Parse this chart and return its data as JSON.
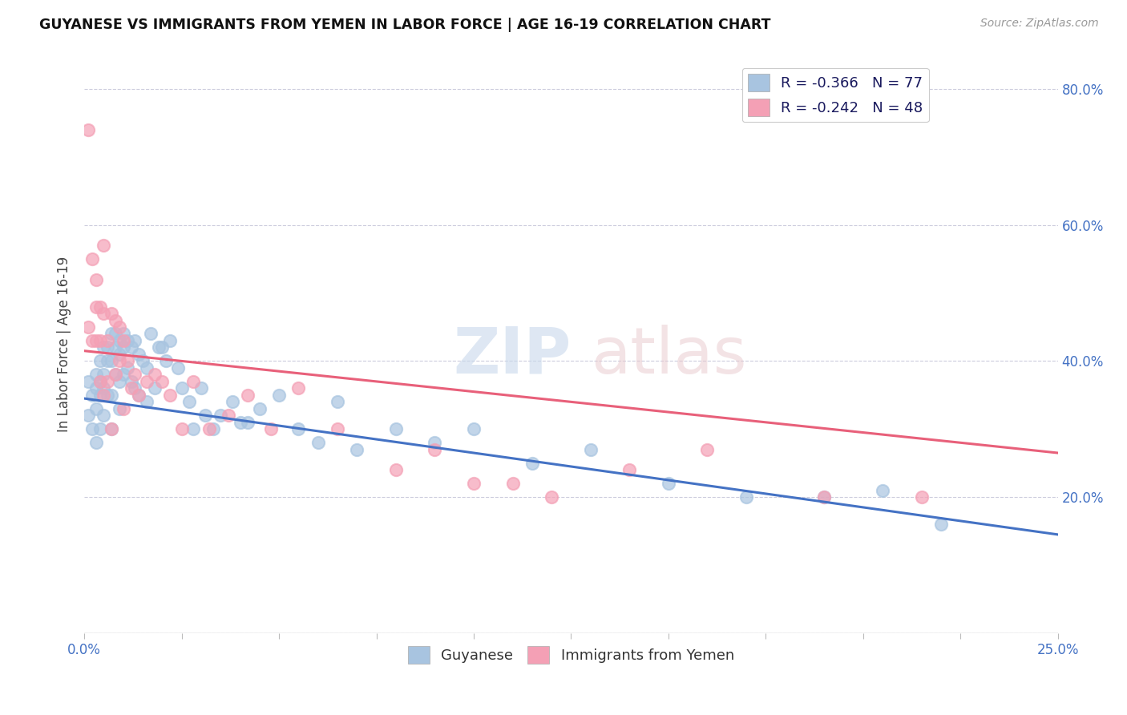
{
  "title": "GUYANESE VS IMMIGRANTS FROM YEMEN IN LABOR FORCE | AGE 16-19 CORRELATION CHART",
  "source": "Source: ZipAtlas.com",
  "ylabel": "In Labor Force | Age 16-19",
  "xlim": [
    0.0,
    0.25
  ],
  "ylim": [
    0.0,
    0.85
  ],
  "xtick_positions": [
    0.0,
    0.025,
    0.05,
    0.075,
    0.1,
    0.125,
    0.15,
    0.175,
    0.2,
    0.225,
    0.25
  ],
  "xtick_labels": [
    "0.0%",
    "",
    "",
    "",
    "",
    "",
    "",
    "",
    "",
    "",
    "25.0%"
  ],
  "ytick_positions": [
    0.0,
    0.2,
    0.4,
    0.6,
    0.8
  ],
  "ytick_labels": [
    "",
    "20.0%",
    "40.0%",
    "60.0%",
    "80.0%"
  ],
  "legend_label1": "R = -0.366   N = 77",
  "legend_label2": "R = -0.242   N = 48",
  "color_blue": "#a8c4e0",
  "color_pink": "#f4a0b5",
  "line_color_blue": "#4472c4",
  "line_color_pink": "#e8607a",
  "blue_trend_x": [
    0.0,
    0.25
  ],
  "blue_trend_y": [
    0.345,
    0.145
  ],
  "pink_trend_x": [
    0.0,
    0.25
  ],
  "pink_trend_y": [
    0.415,
    0.265
  ],
  "legend_bottom_label1": "Guyanese",
  "legend_bottom_label2": "Immigrants from Yemen",
  "blue_scatter_x": [
    0.001,
    0.001,
    0.002,
    0.002,
    0.003,
    0.003,
    0.003,
    0.003,
    0.004,
    0.004,
    0.004,
    0.004,
    0.005,
    0.005,
    0.005,
    0.005,
    0.006,
    0.006,
    0.006,
    0.007,
    0.007,
    0.007,
    0.007,
    0.008,
    0.008,
    0.008,
    0.009,
    0.009,
    0.009,
    0.009,
    0.01,
    0.01,
    0.01,
    0.011,
    0.011,
    0.012,
    0.012,
    0.013,
    0.013,
    0.014,
    0.014,
    0.015,
    0.016,
    0.016,
    0.017,
    0.018,
    0.019,
    0.02,
    0.021,
    0.022,
    0.024,
    0.025,
    0.027,
    0.028,
    0.03,
    0.031,
    0.033,
    0.035,
    0.038,
    0.04,
    0.042,
    0.045,
    0.05,
    0.055,
    0.06,
    0.065,
    0.07,
    0.08,
    0.09,
    0.1,
    0.115,
    0.13,
    0.15,
    0.17,
    0.19,
    0.205,
    0.22
  ],
  "blue_scatter_y": [
    0.37,
    0.32,
    0.35,
    0.3,
    0.38,
    0.36,
    0.33,
    0.28,
    0.4,
    0.37,
    0.35,
    0.3,
    0.42,
    0.38,
    0.36,
    0.32,
    0.42,
    0.4,
    0.35,
    0.44,
    0.4,
    0.35,
    0.3,
    0.44,
    0.42,
    0.38,
    0.43,
    0.41,
    0.37,
    0.33,
    0.44,
    0.42,
    0.38,
    0.43,
    0.39,
    0.42,
    0.37,
    0.43,
    0.36,
    0.41,
    0.35,
    0.4,
    0.39,
    0.34,
    0.44,
    0.36,
    0.42,
    0.42,
    0.4,
    0.43,
    0.39,
    0.36,
    0.34,
    0.3,
    0.36,
    0.32,
    0.3,
    0.32,
    0.34,
    0.31,
    0.31,
    0.33,
    0.35,
    0.3,
    0.28,
    0.34,
    0.27,
    0.3,
    0.28,
    0.3,
    0.25,
    0.27,
    0.22,
    0.2,
    0.2,
    0.21,
    0.16
  ],
  "pink_scatter_x": [
    0.001,
    0.001,
    0.002,
    0.002,
    0.003,
    0.003,
    0.003,
    0.004,
    0.004,
    0.004,
    0.005,
    0.005,
    0.005,
    0.006,
    0.006,
    0.007,
    0.007,
    0.008,
    0.008,
    0.009,
    0.009,
    0.01,
    0.01,
    0.011,
    0.012,
    0.013,
    0.014,
    0.016,
    0.018,
    0.02,
    0.022,
    0.025,
    0.028,
    0.032,
    0.037,
    0.042,
    0.048,
    0.055,
    0.065,
    0.08,
    0.09,
    0.1,
    0.11,
    0.12,
    0.14,
    0.16,
    0.19,
    0.215
  ],
  "pink_scatter_y": [
    0.74,
    0.45,
    0.55,
    0.43,
    0.52,
    0.48,
    0.43,
    0.48,
    0.43,
    0.37,
    0.57,
    0.47,
    0.35,
    0.43,
    0.37,
    0.47,
    0.3,
    0.46,
    0.38,
    0.45,
    0.4,
    0.43,
    0.33,
    0.4,
    0.36,
    0.38,
    0.35,
    0.37,
    0.38,
    0.37,
    0.35,
    0.3,
    0.37,
    0.3,
    0.32,
    0.35,
    0.3,
    0.36,
    0.3,
    0.24,
    0.27,
    0.22,
    0.22,
    0.2,
    0.24,
    0.27,
    0.2,
    0.2
  ]
}
